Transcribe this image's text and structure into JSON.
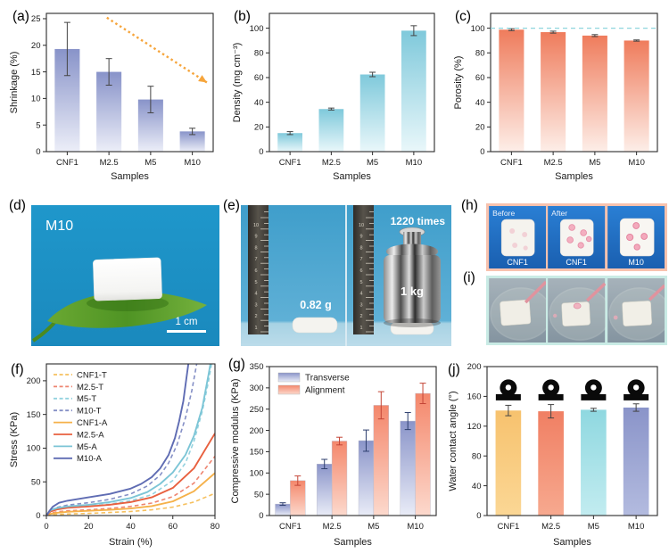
{
  "panel_labels": {
    "a": "(a)",
    "b": "(b)",
    "c": "(c)",
    "d": "(d)",
    "e": "(e)",
    "f": "(f)",
    "g": "(g)",
    "h": "(h)",
    "i": "(i)",
    "j": "(j)"
  },
  "photos": {
    "d": {
      "sample_label": "M10",
      "scale_bar_label": "1 cm"
    },
    "e": {
      "mass_label": "0.82 g",
      "times_label": "1220 times",
      "weight_label": "1 kg",
      "ruler_numbers": [
        "1",
        "2",
        "3",
        "4",
        "5",
        "6",
        "7",
        "8",
        "9",
        "10"
      ]
    },
    "h": {
      "top_labels": [
        "Before",
        "After"
      ],
      "bottom_labels": [
        "CNF1",
        "CNF1",
        "M10"
      ]
    }
  },
  "chart_data": [
    {
      "id": "a",
      "type": "bar",
      "title": "",
      "categories": [
        "CNF1",
        "M2.5",
        "M5",
        "M10"
      ],
      "values": [
        19.3,
        15.0,
        9.8,
        3.8
      ],
      "errors": [
        5.0,
        2.5,
        2.5,
        0.6
      ],
      "xlabel": "Samples",
      "ylabel": "Shrinkage (%)",
      "ylim": [
        0,
        26
      ],
      "yticks": [
        0,
        5,
        10,
        15,
        20,
        25
      ],
      "bar_gradient": [
        "#8893c9",
        "#eceef8"
      ],
      "error_color": "#444444",
      "annotation_arrow": {
        "x1": 0.95,
        "y1": 25.2,
        "x2": 3.35,
        "y2": 13.0,
        "color": "#f6a53c"
      }
    },
    {
      "id": "b",
      "type": "bar",
      "categories": [
        "CNF1",
        "M2.5",
        "M5",
        "M10"
      ],
      "values": [
        15.0,
        34.5,
        62.5,
        98.0
      ],
      "errors": [
        1.2,
        0.8,
        1.8,
        4.0
      ],
      "xlabel": "Samples",
      "ylabel": "Density (mg cm⁻³)",
      "ylim": [
        0,
        112
      ],
      "yticks": [
        0,
        20,
        40,
        60,
        80,
        100
      ],
      "bar_gradient": [
        "#7fc9db",
        "#e9f7fa"
      ],
      "error_color": "#444444"
    },
    {
      "id": "c",
      "type": "bar",
      "categories": [
        "CNF1",
        "M2.5",
        "M5",
        "M10"
      ],
      "values": [
        98.8,
        96.8,
        94.0,
        90.0
      ],
      "errors": [
        0.8,
        0.8,
        0.8,
        0.5
      ],
      "xlabel": "Samples",
      "ylabel": "Porosity (%)",
      "ylim": [
        0,
        112
      ],
      "yticks": [
        0,
        20,
        40,
        60,
        80,
        100
      ],
      "bar_gradient": [
        "#ef7c5c",
        "#fdeee8"
      ],
      "error_color": "#444444",
      "refline": {
        "y": 100,
        "color": "#8fd6de"
      }
    },
    {
      "id": "f",
      "type": "line",
      "xlabel": "Strain (%)",
      "ylabel": "Stress (KPa)",
      "xlim": [
        0,
        80
      ],
      "ylim": [
        0,
        225
      ],
      "xticks": [
        0,
        20,
        40,
        60,
        80
      ],
      "yticks": [
        0,
        50,
        100,
        150,
        200
      ],
      "legend_position": "top-left",
      "series": [
        {
          "name": "CNF1-T",
          "color": "#f6c05e",
          "dash": true,
          "points": [
            [
              0,
              0
            ],
            [
              2,
              0.8
            ],
            [
              5,
              1.5
            ],
            [
              10,
              2.2
            ],
            [
              20,
              3.2
            ],
            [
              30,
              4.5
            ],
            [
              40,
              6
            ],
            [
              50,
              8.5
            ],
            [
              60,
              12.5
            ],
            [
              70,
              20
            ],
            [
              80,
              33
            ]
          ]
        },
        {
          "name": "M2.5-T",
          "color": "#ee8571",
          "dash": true,
          "points": [
            [
              0,
              0
            ],
            [
              2,
              3.5
            ],
            [
              5,
              5.5
            ],
            [
              10,
              7
            ],
            [
              20,
              8.5
            ],
            [
              30,
              10.5
            ],
            [
              40,
              13.5
            ],
            [
              50,
              18.5
            ],
            [
              60,
              28
            ],
            [
              70,
              48
            ],
            [
              80,
              88
            ]
          ]
        },
        {
          "name": "M5-T",
          "color": "#93d2df",
          "dash": true,
          "points": [
            [
              0,
              0
            ],
            [
              2,
              6
            ],
            [
              5,
              9
            ],
            [
              10,
              12
            ],
            [
              20,
              14
            ],
            [
              30,
              17
            ],
            [
              40,
              22
            ],
            [
              50,
              31
            ],
            [
              60,
              52
            ],
            [
              66,
              78
            ],
            [
              70,
              110
            ],
            [
              74,
              155
            ],
            [
              77,
              200
            ],
            [
              78.5,
              228
            ]
          ]
        },
        {
          "name": "M10-T",
          "color": "#8590c6",
          "dash": true,
          "points": [
            [
              0,
              0
            ],
            [
              2,
              8
            ],
            [
              5,
              12
            ],
            [
              10,
              15.5
            ],
            [
              20,
              19
            ],
            [
              30,
              24
            ],
            [
              40,
              32
            ],
            [
              48,
              44
            ],
            [
              54,
              60
            ],
            [
              58,
              78
            ],
            [
              62,
              105
            ],
            [
              66,
              145
            ],
            [
              69,
              185
            ],
            [
              71.5,
              228
            ]
          ]
        },
        {
          "name": "CNF1-A",
          "color": "#f5b14a",
          "dash": false,
          "points": [
            [
              0,
              0
            ],
            [
              2,
              2.5
            ],
            [
              5,
              4
            ],
            [
              10,
              5.5
            ],
            [
              20,
              7
            ],
            [
              30,
              8.5
            ],
            [
              40,
              10.5
            ],
            [
              50,
              14
            ],
            [
              60,
              21
            ],
            [
              70,
              36
            ],
            [
              80,
              63
            ]
          ]
        },
        {
          "name": "M2.5-A",
          "color": "#e8603f",
          "dash": false,
          "points": [
            [
              0,
              0
            ],
            [
              2,
              6
            ],
            [
              5,
              9
            ],
            [
              10,
              11.5
            ],
            [
              20,
              13.5
            ],
            [
              30,
              16
            ],
            [
              40,
              20
            ],
            [
              50,
              27
            ],
            [
              60,
              41
            ],
            [
              70,
              70
            ],
            [
              80,
              122
            ]
          ]
        },
        {
          "name": "M5-A",
          "color": "#7cc5d6",
          "dash": false,
          "points": [
            [
              0,
              0
            ],
            [
              2,
              8
            ],
            [
              5,
              11
            ],
            [
              10,
              13.5
            ],
            [
              20,
              16
            ],
            [
              30,
              20
            ],
            [
              40,
              26
            ],
            [
              48,
              35
            ],
            [
              54,
              47
            ],
            [
              60,
              64
            ],
            [
              66,
              90
            ],
            [
              70,
              118
            ],
            [
              74,
              160
            ],
            [
              77,
              210
            ],
            [
              78,
              228
            ]
          ]
        },
        {
          "name": "M10-A",
          "color": "#5f6cb3",
          "dash": false,
          "points": [
            [
              0,
              0
            ],
            [
              1.5,
              7
            ],
            [
              3,
              13
            ],
            [
              6,
              19
            ],
            [
              10,
              22
            ],
            [
              20,
              27
            ],
            [
              30,
              32
            ],
            [
              40,
              40
            ],
            [
              45,
              47
            ],
            [
              50,
              57
            ],
            [
              54,
              70
            ],
            [
              58,
              90
            ],
            [
              61,
              115
            ],
            [
              63,
              140
            ],
            [
              65,
              170
            ],
            [
              66.5,
              205
            ],
            [
              67.5,
              228
            ]
          ]
        }
      ]
    },
    {
      "id": "g",
      "type": "grouped_bar",
      "categories": [
        "CNF1",
        "M2.5",
        "M5",
        "M10"
      ],
      "xlabel": "Samples",
      "ylabel": "Compressive modulus (KPa)",
      "ylim": [
        0,
        350
      ],
      "yticks": [
        0,
        50,
        100,
        150,
        200,
        250,
        300,
        350
      ],
      "series": [
        {
          "name": "Transverse",
          "values": [
            27,
            121,
            176,
            222
          ],
          "errors": [
            3,
            11,
            25,
            20
          ],
          "gradient": [
            "#8a94c9",
            "#e9ecf7"
          ],
          "error_color": "#2e3f6e"
        },
        {
          "name": "Alignment",
          "values": [
            82,
            175,
            259,
            287
          ],
          "errors": [
            11,
            9,
            32,
            24
          ],
          "gradient": [
            "#f4876b",
            "#fcd9cd"
          ],
          "error_color": "#c44536"
        }
      ]
    },
    {
      "id": "j",
      "type": "bar",
      "categories": [
        "CNF1",
        "M2.5",
        "M5",
        "M10"
      ],
      "values": [
        141,
        140,
        142,
        145
      ],
      "errors": [
        7,
        9,
        2,
        5
      ],
      "xlabel": "Samples",
      "ylabel": "Water contact angle (°)",
      "ylim": [
        0,
        200
      ],
      "yticks": [
        0,
        40,
        80,
        120,
        160,
        200
      ],
      "bar_colors": [
        [
          "#f7c26e",
          "#fbd795"
        ],
        [
          "#f07f63",
          "#f7a98f"
        ],
        [
          "#8fd8e0",
          "#c2ecf0"
        ],
        [
          "#8a94c9",
          "#b3bbdf"
        ]
      ],
      "error_color": "#444444",
      "droplet_icons": true
    }
  ]
}
